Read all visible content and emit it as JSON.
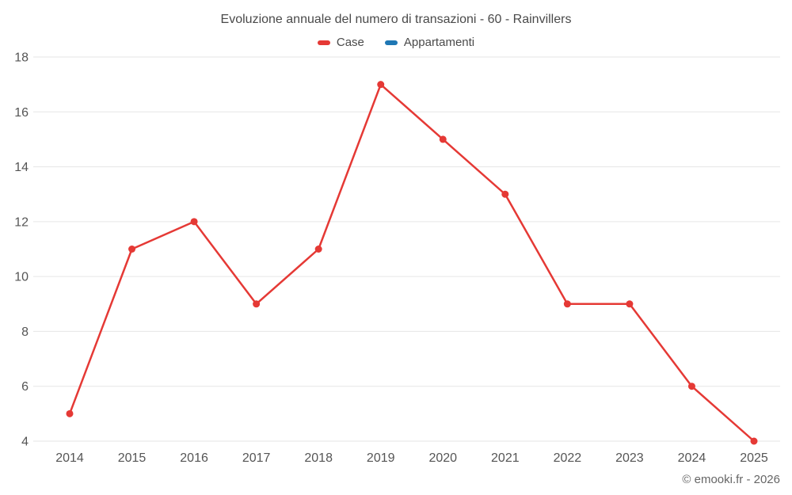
{
  "title": "Evoluzione annuale del numero di transazioni - 60 - Rainvillers",
  "legend": [
    {
      "label": "Case",
      "color": "#e53935"
    },
    {
      "label": "Appartamenti",
      "color": "#1f77b4"
    }
  ],
  "footer": "© emooki.fr - 2026",
  "colors": {
    "grid": "#e6e6e6",
    "axis_text": "#555555"
  },
  "chart_data": {
    "type": "line",
    "title": "Evoluzione annuale del numero di transazioni - 60 - Rainvillers",
    "categories": [
      "2014",
      "2015",
      "2016",
      "2017",
      "2018",
      "2019",
      "2020",
      "2021",
      "2022",
      "2023",
      "2024",
      "2025"
    ],
    "series": [
      {
        "name": "Case",
        "color": "#e53935",
        "values": [
          5,
          11,
          12,
          9,
          11,
          17,
          15,
          13,
          9,
          9,
          6,
          4
        ]
      },
      {
        "name": "Appartamenti",
        "color": "#1f77b4",
        "values": []
      }
    ],
    "xlabel": "",
    "ylabel": "",
    "ylim": [
      4,
      18
    ],
    "ytick_step": 2,
    "grid": true,
    "legend_position": "top"
  }
}
